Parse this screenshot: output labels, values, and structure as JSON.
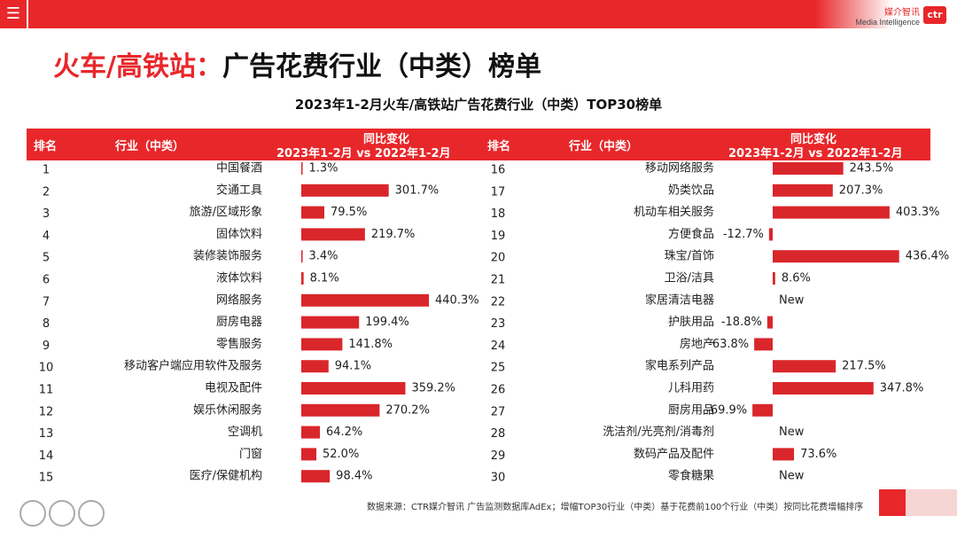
{
  "header": {
    "menu_icon": "hamburger-icon",
    "brand_cn": "媒介智讯",
    "brand_en": "Media Intelligence",
    "logo_text": "ctr"
  },
  "title_red": "火车/高铁站：",
  "title_black": "广告花费行业（中类）榜单",
  "subtitle": "2023年1-2月火车/高铁站广告花费行业（中类）TOP30榜单",
  "table_header": {
    "rank": "排名",
    "industry": "行业（中类）",
    "change_line1": "同比变化",
    "change_line2": "2023年1-2月 vs 2022年1-2月"
  },
  "chart_data": {
    "type": "bar",
    "title": "2023年1-2月火车/高铁站广告花费行业（中类）TOP30榜单",
    "ylabel": "同比变化 2023年1-2月 vs 2022年1-2月",
    "unit": "%",
    "rows": [
      {
        "rank": "1",
        "industry": "中国餐酒",
        "value": 1.3,
        "label": "1.3%"
      },
      {
        "rank": "2",
        "industry": "交通工具",
        "value": 301.7,
        "label": "301.7%"
      },
      {
        "rank": "3",
        "industry": "旅游/区域形象",
        "value": 79.5,
        "label": "79.5%"
      },
      {
        "rank": "4",
        "industry": "固体饮料",
        "value": 219.7,
        "label": "219.7%"
      },
      {
        "rank": "5",
        "industry": "装修装饰服务",
        "value": 3.4,
        "label": "3.4%"
      },
      {
        "rank": "6",
        "industry": "液体饮料",
        "value": 8.1,
        "label": "8.1%"
      },
      {
        "rank": "7",
        "industry": "网络服务",
        "value": 440.3,
        "label": "440.3%"
      },
      {
        "rank": "8",
        "industry": "厨房电器",
        "value": 199.4,
        "label": "199.4%"
      },
      {
        "rank": "9",
        "industry": "零售服务",
        "value": 141.8,
        "label": "141.8%"
      },
      {
        "rank": "10",
        "industry": "移动客户端应用软件及服务",
        "value": 94.1,
        "label": "94.1%"
      },
      {
        "rank": "11",
        "industry": "电视及配件",
        "value": 359.2,
        "label": "359.2%"
      },
      {
        "rank": "12",
        "industry": "娱乐休闲服务",
        "value": 270.2,
        "label": "270.2%"
      },
      {
        "rank": "13",
        "industry": "空调机",
        "value": 64.2,
        "label": "64.2%"
      },
      {
        "rank": "14",
        "industry": "门窗",
        "value": 52.0,
        "label": "52.0%"
      },
      {
        "rank": "15",
        "industry": "医疗/保健机构",
        "value": 98.4,
        "label": "98.4%"
      },
      {
        "rank": "16",
        "industry": "移动网络服务",
        "value": 243.5,
        "label": "243.5%"
      },
      {
        "rank": "17",
        "industry": "奶类饮品",
        "value": 207.3,
        "label": "207.3%"
      },
      {
        "rank": "18",
        "industry": "机动车相关服务",
        "value": 403.3,
        "label": "403.3%"
      },
      {
        "rank": "19",
        "industry": "方便食品",
        "value": -12.7,
        "label": "-12.7%"
      },
      {
        "rank": "20",
        "industry": "珠宝/首饰",
        "value": 436.4,
        "label": "436.4%"
      },
      {
        "rank": "21",
        "industry": "卫浴/洁具",
        "value": 8.6,
        "label": "8.6%"
      },
      {
        "rank": "22",
        "industry": "家居清洁电器",
        "value": null,
        "label": "New"
      },
      {
        "rank": "23",
        "industry": "护肤用品",
        "value": -18.8,
        "label": "-18.8%"
      },
      {
        "rank": "24",
        "industry": "房地产",
        "value": -63.8,
        "label": "-63.8%"
      },
      {
        "rank": "25",
        "industry": "家电系列产品",
        "value": 217.5,
        "label": "217.5%"
      },
      {
        "rank": "26",
        "industry": "儿科用药",
        "value": 347.8,
        "label": "347.8%"
      },
      {
        "rank": "27",
        "industry": "厨房用品",
        "value": -69.9,
        "label": "-69.9%"
      },
      {
        "rank": "28",
        "industry": "洗洁剂/光亮剂/消毒剂",
        "value": null,
        "label": "New"
      },
      {
        "rank": "29",
        "industry": "数码产品及配件",
        "value": 73.6,
        "label": "73.6%"
      },
      {
        "rank": "30",
        "industry": "零食糖果",
        "value": null,
        "label": "New"
      }
    ],
    "bar_color": "#d9262b"
  },
  "footer": "数据来源：CTR媒介智讯 广告监测数据库AdEx；增幅TOP30行业（中类）基于花费前100个行业（中类）按同比花费增幅排序",
  "colors": {
    "accent": "#e8272a",
    "bar": "#d9262b"
  }
}
